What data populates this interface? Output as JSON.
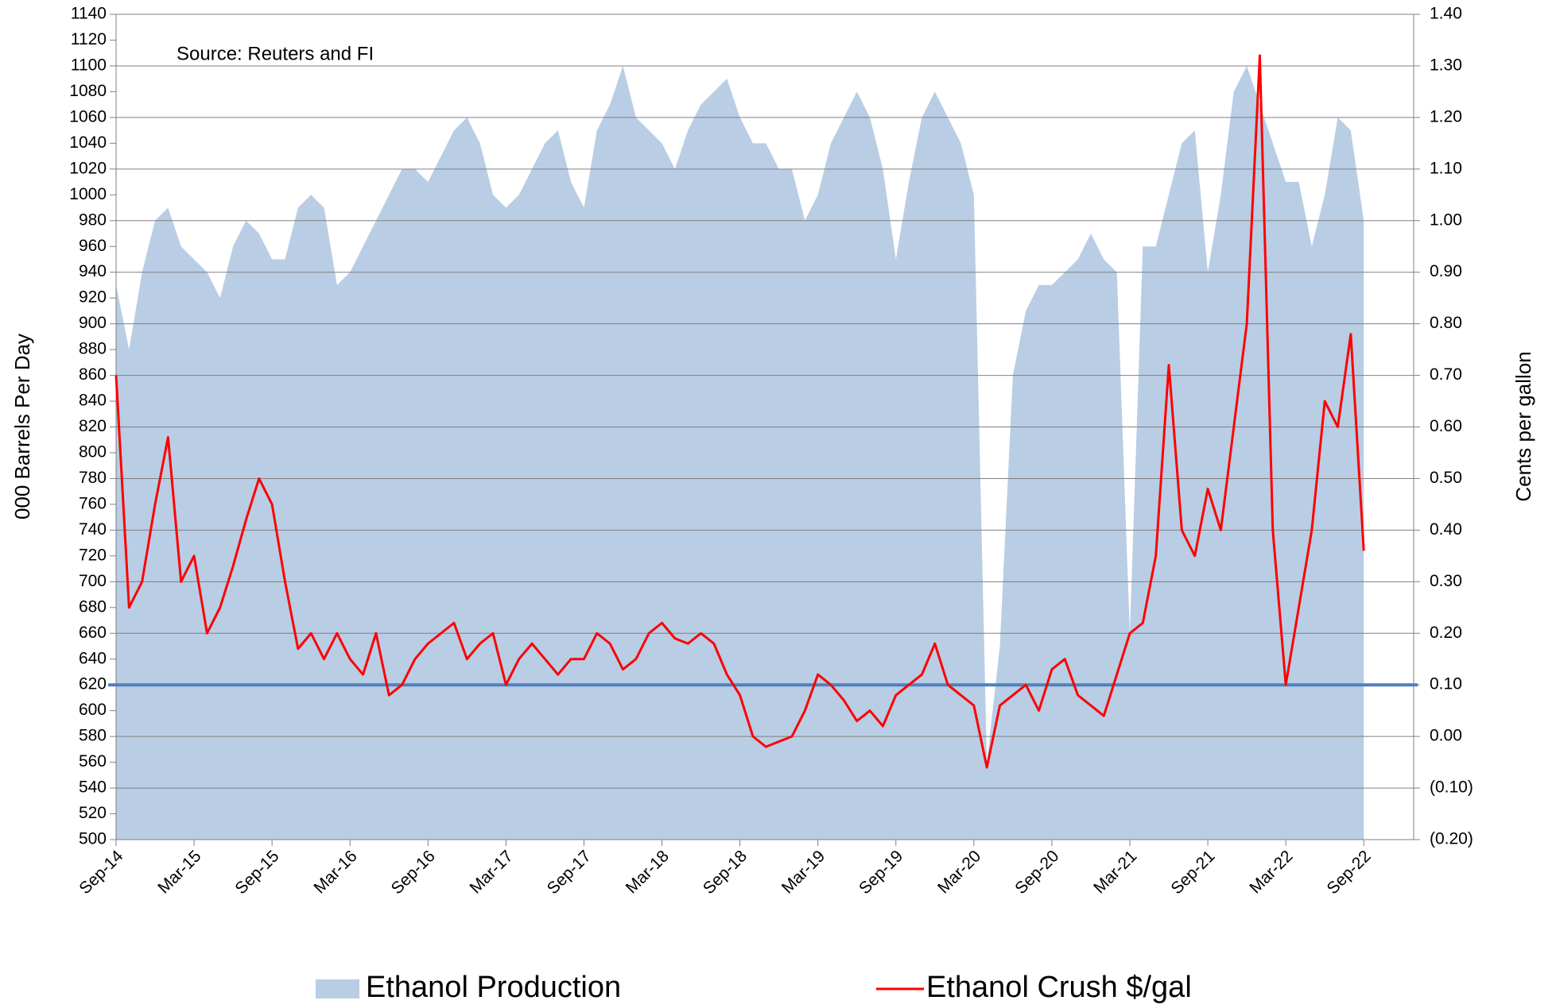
{
  "chart_data": {
    "type": "area-line",
    "annotation": "Source: Reuters and FI",
    "y_label": "000 Barrels Per Day",
    "y2_label": "Cents per gallon",
    "categories": [
      "Sep-14",
      null,
      null,
      null,
      null,
      null,
      "Mar-15",
      null,
      null,
      null,
      null,
      null,
      "Sep-15",
      null,
      null,
      null,
      null,
      null,
      "Mar-16",
      null,
      null,
      null,
      null,
      null,
      "Sep-16",
      null,
      null,
      null,
      null,
      null,
      "Mar-17",
      null,
      null,
      null,
      null,
      null,
      "Sep-17",
      null,
      null,
      null,
      null,
      null,
      "Mar-18",
      null,
      null,
      null,
      null,
      null,
      "Sep-18",
      null,
      null,
      null,
      null,
      null,
      "Mar-19",
      null,
      null,
      null,
      null,
      null,
      "Sep-19",
      null,
      null,
      null,
      null,
      null,
      "Mar-20",
      null,
      null,
      null,
      null,
      null,
      "Sep-20",
      null,
      null,
      null,
      null,
      null,
      "Mar-21",
      null,
      null,
      null,
      null,
      null,
      "Sep-21",
      null,
      null,
      null,
      null,
      null,
      "Mar-22",
      null,
      null,
      null,
      null,
      null,
      "Sep-22"
    ],
    "series": [
      {
        "name": "Ethanol Production",
        "color": "#b9cde5",
        "kind": "area",
        "values": [
          930,
          880,
          940,
          980,
          990,
          960,
          950,
          940,
          920,
          960,
          980,
          970,
          950,
          950,
          990,
          1000,
          990,
          930,
          940,
          960,
          980,
          1000,
          1020,
          1020,
          1010,
          1030,
          1050,
          1060,
          1040,
          1000,
          990,
          1000,
          1020,
          1040,
          1050,
          1010,
          990,
          1050,
          1070,
          1100,
          1060,
          1050,
          1040,
          1020,
          1050,
          1070,
          1080,
          1090,
          1060,
          1040,
          1040,
          1020,
          1020,
          980,
          1000,
          1040,
          1060,
          1080,
          1060,
          1020,
          950,
          1010,
          1060,
          1080,
          1060,
          1040,
          1000,
          560,
          650,
          860,
          910,
          930,
          930,
          940,
          950,
          970,
          950,
          940,
          660,
          960,
          960,
          1000,
          1040,
          1050,
          940,
          1000,
          1080,
          1100,
          1070,
          1040,
          1010,
          1010,
          960,
          1000,
          1060,
          1050,
          980
        ]
      },
      {
        "name": "Ethanol Crush $/gal",
        "color": "#ff0000",
        "kind": "line",
        "axis": "y2",
        "values": [
          0.7,
          0.25,
          0.3,
          0.45,
          0.58,
          0.3,
          0.35,
          0.2,
          0.25,
          0.33,
          0.42,
          0.5,
          0.45,
          0.3,
          0.17,
          0.2,
          0.15,
          0.2,
          0.15,
          0.12,
          0.2,
          0.08,
          0.1,
          0.15,
          0.18,
          0.2,
          0.22,
          0.15,
          0.18,
          0.2,
          0.1,
          0.15,
          0.18,
          0.15,
          0.12,
          0.15,
          0.15,
          0.2,
          0.18,
          0.13,
          0.15,
          0.2,
          0.22,
          0.19,
          0.18,
          0.2,
          0.18,
          0.12,
          0.08,
          0.0,
          -0.02,
          -0.01,
          0.0,
          0.05,
          0.12,
          0.1,
          0.07,
          0.03,
          0.05,
          0.02,
          0.08,
          0.1,
          0.12,
          0.18,
          0.1,
          0.08,
          0.06,
          -0.06,
          0.06,
          0.08,
          0.1,
          0.05,
          0.13,
          0.15,
          0.08,
          0.06,
          0.04,
          0.12,
          0.2,
          0.22,
          0.35,
          0.72,
          0.4,
          0.35,
          0.48,
          0.4,
          0.6,
          0.8,
          1.32,
          0.4,
          0.1,
          0.25,
          0.4,
          0.65,
          0.6,
          0.78,
          0.36
        ]
      }
    ],
    "reference_line": {
      "value": 0.1,
      "axis": "y2",
      "color": "#4f81bd"
    },
    "ylim": [
      500,
      1140
    ],
    "yticks": [
      500,
      520,
      540,
      560,
      580,
      600,
      620,
      640,
      660,
      680,
      700,
      720,
      740,
      760,
      780,
      800,
      820,
      840,
      860,
      880,
      900,
      920,
      940,
      960,
      980,
      1000,
      1020,
      1040,
      1060,
      1080,
      1100,
      1120,
      1140
    ],
    "y2lim": [
      -0.2,
      1.4
    ],
    "y2ticks": [
      {
        "value": -0.2,
        "label": "(0.20)"
      },
      {
        "value": -0.1,
        "label": "(0.10)"
      },
      {
        "value": 0,
        "label": "0.00"
      },
      {
        "value": 0.1,
        "label": "0.10"
      },
      {
        "value": 0.2,
        "label": "0.20"
      },
      {
        "value": 0.3,
        "label": "0.30"
      },
      {
        "value": 0.4,
        "label": "0.40"
      },
      {
        "value": 0.5,
        "label": "0.50"
      },
      {
        "value": 0.6,
        "label": "0.60"
      },
      {
        "value": 0.7,
        "label": "0.70"
      },
      {
        "value": 0.8,
        "label": "0.80"
      },
      {
        "value": 0.9,
        "label": "0.90"
      },
      {
        "value": 1.0,
        "label": "1.00"
      },
      {
        "value": 1.1,
        "label": "1.10"
      },
      {
        "value": 1.2,
        "label": "1.20"
      },
      {
        "value": 1.3,
        "label": "1.30"
      },
      {
        "value": 1.4,
        "label": "1.40"
      }
    ],
    "negative_tick_color": "#ff0000",
    "grid": "y2",
    "legend": "bottom"
  }
}
